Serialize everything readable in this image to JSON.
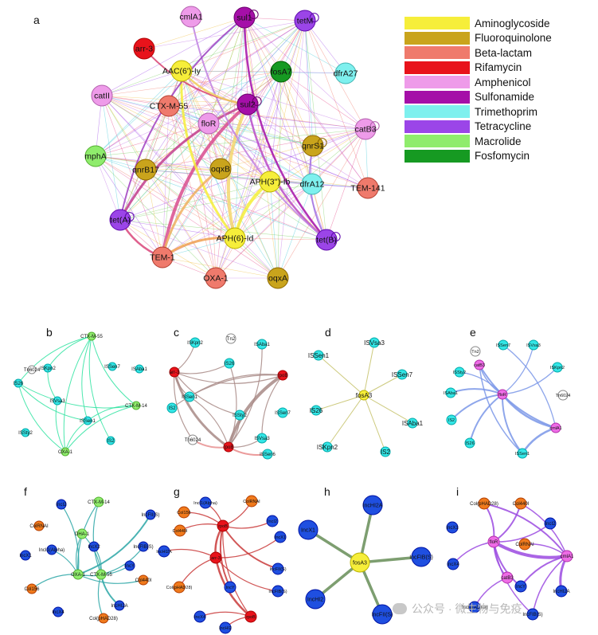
{
  "colors": {
    "Aminoglycoside": "#f6ee3a",
    "Fluoroquinolone": "#c9a41c",
    "Beta-lactam": "#ef7a6c",
    "Rifamycin": "#e8131b",
    "Amphenicol": "#ee9be9",
    "Sulfonamide": "#a50fa8",
    "Trimethoprim": "#7ef0ee",
    "Tetracycline": "#9b45e8",
    "Macrolide": "#8fec6c",
    "Fosfomycin": "#169a22",
    "ISgreen": "#8fec6c",
    "IScyan": "#33e6e6",
    "ISwhite": "#ffffff",
    "ISred": "#e8131b",
    "ISyellow": "#f6ee3a",
    "ISpink": "#ee6ce6",
    "plasmidBlue": "#1f4fe0",
    "plasmidOrange": "#f07a1c",
    "plasmidGreen": "#8fec6c",
    "plasmidRed": "#e8131b",
    "plasmidYellow": "#f6ee3a",
    "plasmidPink": "#ee6ce6"
  },
  "legend": [
    {
      "label": "Aminoglycoside",
      "color": "#f6ee3a"
    },
    {
      "label": "Fluoroquinolone",
      "color": "#c9a41c"
    },
    {
      "label": "Beta-lactam",
      "color": "#ef7a6c"
    },
    {
      "label": "Rifamycin",
      "color": "#e8131b"
    },
    {
      "label": "Amphenicol",
      "color": "#ee9be9"
    },
    {
      "label": "Sulfonamide",
      "color": "#a50fa8"
    },
    {
      "label": "Trimethoprim",
      "color": "#7ef0ee"
    },
    {
      "label": "Tetracycline",
      "color": "#9b45e8"
    },
    {
      "label": "Macrolide",
      "color": "#8fec6c"
    },
    {
      "label": "Fosfomycin",
      "color": "#169a22"
    }
  ],
  "watermark": "公众号 · 微生物与免疫",
  "panels": [
    {
      "letter": "a",
      "nodes": [
        {
          "label": "cmlA1",
          "cls": "Amphenicol"
        },
        {
          "label": "sul1",
          "cls": "Sulfonamide"
        },
        {
          "label": "tetM",
          "cls": "Tetracycline"
        },
        {
          "label": "arr-3",
          "cls": "Rifamycin"
        },
        {
          "label": "AAC(6')-Iy",
          "cls": "Aminoglycoside"
        },
        {
          "label": "fosA7",
          "cls": "Fosfomycin"
        },
        {
          "label": "dfrA27",
          "cls": "Trimethoprim"
        },
        {
          "label": "catII",
          "cls": "Amphenicol"
        },
        {
          "label": "CTX-M-55",
          "cls": "Beta-lactam"
        },
        {
          "label": "sul2",
          "cls": "Sulfonamide"
        },
        {
          "label": "floR",
          "cls": "Amphenicol"
        },
        {
          "label": "catB3",
          "cls": "Amphenicol"
        },
        {
          "label": "qnrS1",
          "cls": "Fluoroquinolone"
        },
        {
          "label": "mphA",
          "cls": "Macrolide"
        },
        {
          "label": "qnrB17",
          "cls": "Fluoroquinolone"
        },
        {
          "label": "oqxB",
          "cls": "Fluoroquinolone"
        },
        {
          "label": "APH(3'')-Ib",
          "cls": "Aminoglycoside"
        },
        {
          "label": "dfrA12",
          "cls": "Trimethoprim"
        },
        {
          "label": "TEM-141",
          "cls": "Beta-lactam"
        },
        {
          "label": "tet(A)",
          "cls": "Tetracycline"
        },
        {
          "label": "APH(6)-Id",
          "cls": "Aminoglycoside"
        },
        {
          "label": "tet(B)",
          "cls": "Tetracycline"
        },
        {
          "label": "TEM-1",
          "cls": "Beta-lactam"
        },
        {
          "label": "OXA-1",
          "cls": "Beta-lactam"
        },
        {
          "label": "oqxA",
          "cls": "Fluoroquinolone"
        }
      ]
    },
    {
      "letter": "b",
      "nodes": [
        {
          "label": "CTX-M-55",
          "cls": "ISgreen"
        },
        {
          "label": "Tn6024",
          "cls": "ISwhite"
        },
        {
          "label": "ISKpn2",
          "cls": "IScyan"
        },
        {
          "label": "ISSen7",
          "cls": "IScyan"
        },
        {
          "label": "ISAba1",
          "cls": "IScyan"
        },
        {
          "label": "IS26",
          "cls": "IScyan"
        },
        {
          "label": "ISVsa3",
          "cls": "IScyan"
        },
        {
          "label": "CTX-M-14",
          "cls": "ISgreen"
        },
        {
          "label": "ISSen1",
          "cls": "IScyan"
        },
        {
          "label": "ISSty2",
          "cls": "IScyan"
        },
        {
          "label": "IS2",
          "cls": "IScyan"
        },
        {
          "label": "OXA-1",
          "cls": "ISgreen"
        }
      ]
    },
    {
      "letter": "c",
      "nodes": [
        {
          "label": "ISKpn2",
          "cls": "IScyan"
        },
        {
          "label": "Tn2",
          "cls": "ISwhite"
        },
        {
          "label": "ISAba1",
          "cls": "IScyan"
        },
        {
          "label": "arr-3",
          "cls": "ISred"
        },
        {
          "label": "IS26",
          "cls": "IScyan"
        },
        {
          "label": "rpoB",
          "cls": "ISred"
        },
        {
          "label": "ISSen1",
          "cls": "IScyan"
        },
        {
          "label": "ISSen7",
          "cls": "IScyan"
        },
        {
          "label": "IS2",
          "cls": "IScyan"
        },
        {
          "label": "ISSty2",
          "cls": "IScyan"
        },
        {
          "label": "ISVsa3",
          "cls": "IScyan"
        },
        {
          "label": "Tn6024",
          "cls": "ISwhite"
        },
        {
          "label": "rpoB",
          "cls": "ISred"
        },
        {
          "label": "ISSen6",
          "cls": "IScyan"
        }
      ]
    },
    {
      "letter": "d",
      "nodes": [
        {
          "label": "ISVsa3",
          "cls": "IScyan"
        },
        {
          "label": "ISSen1",
          "cls": "IScyan"
        },
        {
          "label": "ISSen7",
          "cls": "IScyan"
        },
        {
          "label": "fosA3",
          "cls": "ISyellow"
        },
        {
          "label": "IS26",
          "cls": "IScyan"
        },
        {
          "label": "ISAba1",
          "cls": "IScyan"
        },
        {
          "label": "ISKpn2",
          "cls": "IScyan"
        },
        {
          "label": "IS2",
          "cls": "IScyan"
        }
      ]
    },
    {
      "letter": "e",
      "nodes": [
        {
          "label": "Tn2",
          "cls": "ISwhite"
        },
        {
          "label": "ISSen7",
          "cls": "IScyan"
        },
        {
          "label": "ISVsa3",
          "cls": "IScyan"
        },
        {
          "label": "catB3",
          "cls": "ISpink"
        },
        {
          "label": "ISSty2",
          "cls": "IScyan"
        },
        {
          "label": "ISKpn2",
          "cls": "IScyan"
        },
        {
          "label": "ISAba1",
          "cls": "IScyan"
        },
        {
          "label": "floR",
          "cls": "ISpink"
        },
        {
          "label": "Tn6024",
          "cls": "ISwhite"
        },
        {
          "label": "IS2",
          "cls": "IScyan"
        },
        {
          "label": "cmlA1",
          "cls": "ISpink"
        },
        {
          "label": "IS26",
          "cls": "IScyan"
        },
        {
          "label": "ISSen1",
          "cls": "IScyan"
        }
      ]
    },
    {
      "letter": "f",
      "nodes": [
        {
          "label": "IncI2",
          "cls": "plasmidBlue"
        },
        {
          "label": "CTX-M-14",
          "cls": "plasmidGreen"
        },
        {
          "label": "IncFII(S)",
          "cls": "plasmidBlue"
        },
        {
          "label": "ColRNAI",
          "cls": "plasmidOrange"
        },
        {
          "label": "DHA-1",
          "cls": "plasmidGreen"
        },
        {
          "label": "IncFIB(S)",
          "cls": "plasmidBlue"
        },
        {
          "label": "IncX1",
          "cls": "plasmidBlue"
        },
        {
          "label": "IncI1(Alpha)",
          "cls": "plasmidBlue"
        },
        {
          "label": "IncX2",
          "cls": "plasmidBlue"
        },
        {
          "label": "IncY",
          "cls": "plasmidBlue"
        },
        {
          "label": "OXA-1",
          "cls": "plasmidGreen"
        },
        {
          "label": "CTX-M-55",
          "cls": "plasmidGreen"
        },
        {
          "label": "Col156",
          "cls": "plasmidOrange"
        },
        {
          "label": "Col440I",
          "cls": "plasmidOrange"
        },
        {
          "label": "IncHI2A",
          "cls": "plasmidBlue"
        },
        {
          "label": "IncX4",
          "cls": "plasmidBlue"
        },
        {
          "label": "Col(pHAD28)",
          "cls": "plasmidOrange"
        }
      ]
    },
    {
      "letter": "g",
      "nodes": [
        {
          "label": "IncI1(Alpha)",
          "cls": "plasmidBlue"
        },
        {
          "label": "ColRNAI",
          "cls": "plasmidOrange"
        },
        {
          "label": "Col156",
          "cls": "plasmidOrange"
        },
        {
          "label": "rpoB",
          "cls": "plasmidRed"
        },
        {
          "label": "IncI2",
          "cls": "plasmidBlue"
        },
        {
          "label": "Col440I",
          "cls": "plasmidOrange"
        },
        {
          "label": "IncX1",
          "cls": "plasmidBlue"
        },
        {
          "label": "IncHI2A",
          "cls": "plasmidBlue"
        },
        {
          "label": "arr-3",
          "cls": "plasmidRed"
        },
        {
          "label": "IncFII(S)",
          "cls": "plasmidBlue"
        },
        {
          "label": "Col(pHAD28)",
          "cls": "plasmidOrange"
        },
        {
          "label": "IncY",
          "cls": "plasmidBlue"
        },
        {
          "label": "IncFIB(S)",
          "cls": "plasmidBlue"
        },
        {
          "label": "IncX4",
          "cls": "plasmidBlue"
        },
        {
          "label": "rpoB",
          "cls": "plasmidRed"
        },
        {
          "label": "IncHI2",
          "cls": "plasmidBlue"
        }
      ]
    },
    {
      "letter": "h",
      "nodes": [
        {
          "label": "IncHI2A",
          "cls": "plasmidBlue"
        },
        {
          "label": "IncX1",
          "cls": "plasmidBlue"
        },
        {
          "label": "fosA3",
          "cls": "plasmidYellow"
        },
        {
          "label": "IncFIB(S)",
          "cls": "plasmidBlue"
        },
        {
          "label": "IncHI2",
          "cls": "plasmidBlue"
        },
        {
          "label": "IncFII(S)",
          "cls": "plasmidBlue"
        }
      ]
    },
    {
      "letter": "i",
      "nodes": [
        {
          "label": "Col(pHAD28)",
          "cls": "plasmidOrange"
        },
        {
          "label": "Col440I",
          "cls": "plasmidOrange"
        },
        {
          "label": "IncX1",
          "cls": "plasmidBlue"
        },
        {
          "label": "IncI2",
          "cls": "plasmidBlue"
        },
        {
          "label": "floR",
          "cls": "plasmidPink"
        },
        {
          "label": "ColRNAI",
          "cls": "plasmidOrange"
        },
        {
          "label": "cmlA1",
          "cls": "plasmidPink"
        },
        {
          "label": "IncX4",
          "cls": "plasmidBlue"
        },
        {
          "label": "catB3",
          "cls": "plasmidPink"
        },
        {
          "label": "IncY",
          "cls": "plasmidBlue"
        },
        {
          "label": "IncHI2A",
          "cls": "plasmidBlue"
        },
        {
          "label": "IncI1(Alpha)",
          "cls": "plasmidBlue"
        },
        {
          "label": "IncFIB(S)",
          "cls": "plasmidBlue"
        }
      ]
    }
  ]
}
